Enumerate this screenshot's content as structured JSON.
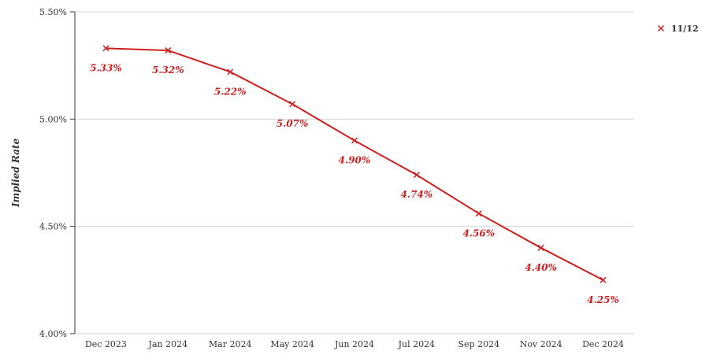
{
  "chart_data": {
    "type": "line",
    "categories": [
      "Dec 2023",
      "Jan 2024",
      "Mar 2024",
      "May 2024",
      "Jun 2024",
      "Jul 2024",
      "Sep 2024",
      "Nov 2024",
      "Dec 2024"
    ],
    "series": [
      {
        "name": "11/12",
        "values": [
          5.33,
          5.32,
          5.22,
          5.07,
          4.9,
          4.74,
          4.56,
          4.4,
          4.25
        ],
        "labels": [
          "5.33%",
          "5.32%",
          "5.22%",
          "5.07%",
          "4.90%",
          "4.74%",
          "4.56%",
          "4.40%",
          "4.25%"
        ],
        "color": "#cc1f1f"
      }
    ],
    "ylabel": "Implied Rate",
    "xlabel": "",
    "ylim": [
      4.0,
      5.5
    ],
    "yticks": [
      4.0,
      4.5,
      5.0,
      5.5
    ],
    "ytick_labels": [
      "4.00%",
      "4.50%",
      "5.00%",
      "5.50%"
    ],
    "grid": true,
    "legend_position": "top-right"
  }
}
